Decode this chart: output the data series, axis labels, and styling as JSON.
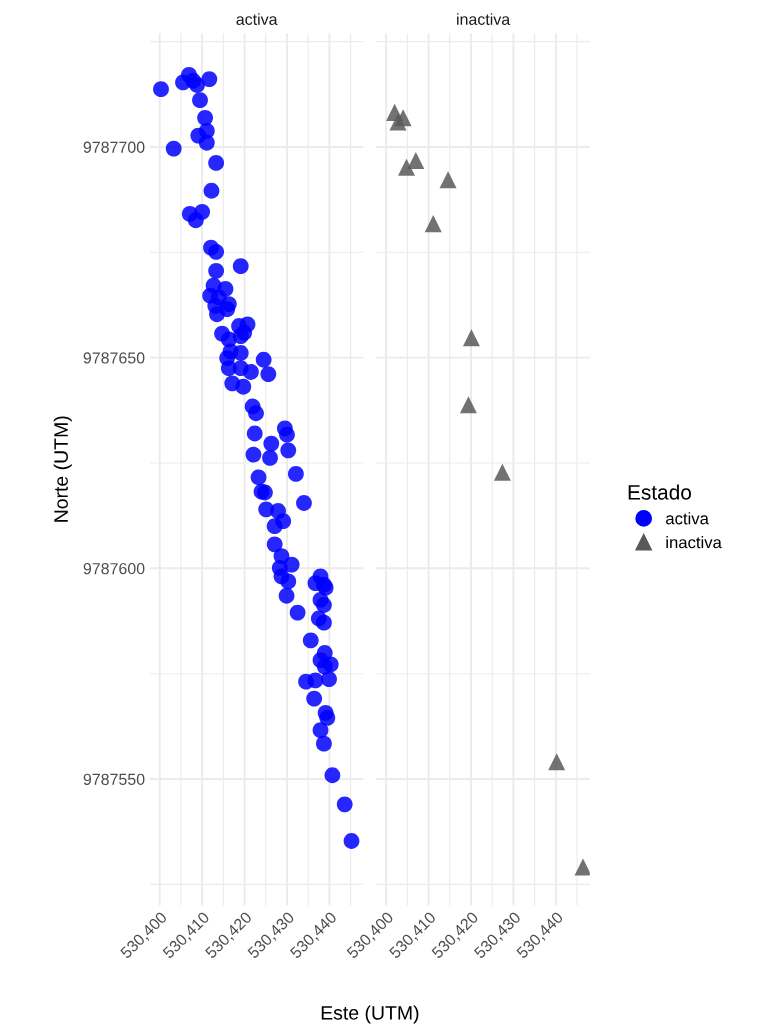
{
  "chart_data": [
    {
      "type": "scatter",
      "title": "activa",
      "xlabel": "Este (UTM)",
      "ylabel": "Norte (UTM)",
      "grid": true,
      "marker": "circle",
      "xlim": [
        530397.7,
        530448
      ],
      "ylim": [
        9787520,
        9787727
      ],
      "xticks": [
        {
          "value": 530400,
          "label": "530,400"
        },
        {
          "value": 530410,
          "label": "530,410"
        },
        {
          "value": 530420,
          "label": "530,420"
        },
        {
          "value": 530430,
          "label": "530,430"
        },
        {
          "value": 530440,
          "label": "530,440"
        }
      ],
      "yticks": [
        9787550,
        9787600,
        9787650,
        9787700
      ],
      "series": [
        {
          "name": "activa",
          "color": "#0000ff",
          "x": [
            530400.3,
            530406.9,
            530405.5,
            530407.9,
            530408.8,
            530411.7,
            530409.5,
            530410.7,
            530411.1,
            530409.1,
            530411.1,
            530403.3,
            530413.3,
            530412.2,
            530407.1,
            530410.0,
            530408.5,
            530412.1,
            530413.3,
            530413.3,
            530419.1,
            530412.7,
            530415.5,
            530411.9,
            530413.9,
            530416.3,
            530413.1,
            530415.9,
            530413.5,
            530420.7,
            530418.7,
            530414.7,
            530416.3,
            530419.1,
            530419.9,
            530416.7,
            530419.1,
            530415.9,
            530424.5,
            530416.3,
            530419.1,
            530421.5,
            530425.6,
            530417.1,
            530419.7,
            530421.9,
            530422.7,
            530422.4,
            530429.5,
            530430.0,
            530426.3,
            530430.3,
            530422.1,
            530426.0,
            530432.1,
            530423.3,
            530424.8,
            530424.0,
            530434.0,
            530425.1,
            530427.9,
            530429.1,
            530427.1,
            530427.1,
            530428.7,
            530431.1,
            530428.3,
            530430.3,
            530428.7,
            530429.9,
            530437.9,
            530438.7,
            530436.7,
            530437.9,
            530438.7,
            530432.5,
            530437.5,
            530439.1,
            530438.7,
            530435.6,
            530438.9,
            530437.9,
            530440.3,
            530438.9,
            530434.5,
            530436.7,
            530439.9,
            530436.4,
            530439.1,
            530439.5,
            530437.9,
            530438.7,
            530440.7,
            530443.6,
            530445.2
          ],
          "values": [
            9787713.7,
            9787717.1,
            9787715.3,
            9787715.7,
            9787714.7,
            9787716.1,
            9787711.1,
            9787706.9,
            9787703.8,
            9787702.7,
            9787701.0,
            9787699.6,
            9787696.2,
            9787689.6,
            9787684.1,
            9787684.6,
            9787682.6,
            9787676.1,
            9787675.1,
            9787670.6,
            9787671.7,
            9787667.1,
            9787666.3,
            9787664.7,
            9787664.3,
            9787662.7,
            9787662.3,
            9787661.5,
            9787660.3,
            9787657.9,
            9787657.5,
            9787655.7,
            9787654.3,
            9787655.1,
            9787655.9,
            9787651.5,
            9787651.1,
            9787649.9,
            9787649.5,
            9787647.5,
            9787647.5,
            9787646.6,
            9787646.1,
            9787643.9,
            9787643.1,
            9787638.4,
            9787636.8,
            9787632.0,
            9787633.2,
            9787631.7,
            9787629.6,
            9787628.0,
            9787627.0,
            9787626.2,
            9787622.4,
            9787621.6,
            9787618.0,
            9787618.2,
            9787615.5,
            9787614.0,
            9787613.6,
            9787611.2,
            9787610.0,
            9787605.7,
            9787602.9,
            9787600.9,
            9787600.1,
            9787596.9,
            9787598.1,
            9787593.5,
            9787598.1,
            9787596.1,
            9787596.5,
            9787592.5,
            9787591.3,
            9787589.5,
            9787588.1,
            9787595.4,
            9787587.1,
            9787582.9,
            9787579.9,
            9787578.2,
            9787577.2,
            9787576.7,
            9787573.1,
            9787573.4,
            9787573.7,
            9787569.1,
            9787565.7,
            9787564.5,
            9787561.6,
            9787558.4,
            9787550.9,
            9787544.0,
            9787535.3
          ]
        }
      ]
    },
    {
      "type": "scatter",
      "title": "inactiva",
      "grid": true,
      "marker": "triangle",
      "tick_labels": "x",
      "legend": "right",
      "legend_title": "Estado",
      "xlim": [
        530397.7,
        530448
      ],
      "ylim": [
        9787520,
        9787727
      ],
      "xticks": [
        {
          "value": 530400,
          "label": "530,400"
        },
        {
          "value": 530410,
          "label": "530,410"
        },
        {
          "value": 530420,
          "label": "530,420"
        },
        {
          "value": 530430,
          "label": "530,430"
        },
        {
          "value": 530440,
          "label": "530,440"
        }
      ],
      "yticks": [
        9787550,
        9787600,
        9787650,
        9787700
      ],
      "series": [
        {
          "name": "inactiva",
          "color": "#595959",
          "x": [
            530402.0,
            530404.0,
            530402.8,
            530407.0,
            530404.8,
            530414.6,
            530411.1,
            530420.1,
            530419.4,
            530427.4,
            530440.2,
            530446.4
          ],
          "values": [
            9787708.2,
            9787706.9,
            9787705.9,
            9787696.8,
            9787695.2,
            9787692.2,
            9787681.8,
            9787654.7,
            9787638.8,
            9787622.8,
            9787554.1,
            9787529.1
          ]
        }
      ]
    }
  ]
}
